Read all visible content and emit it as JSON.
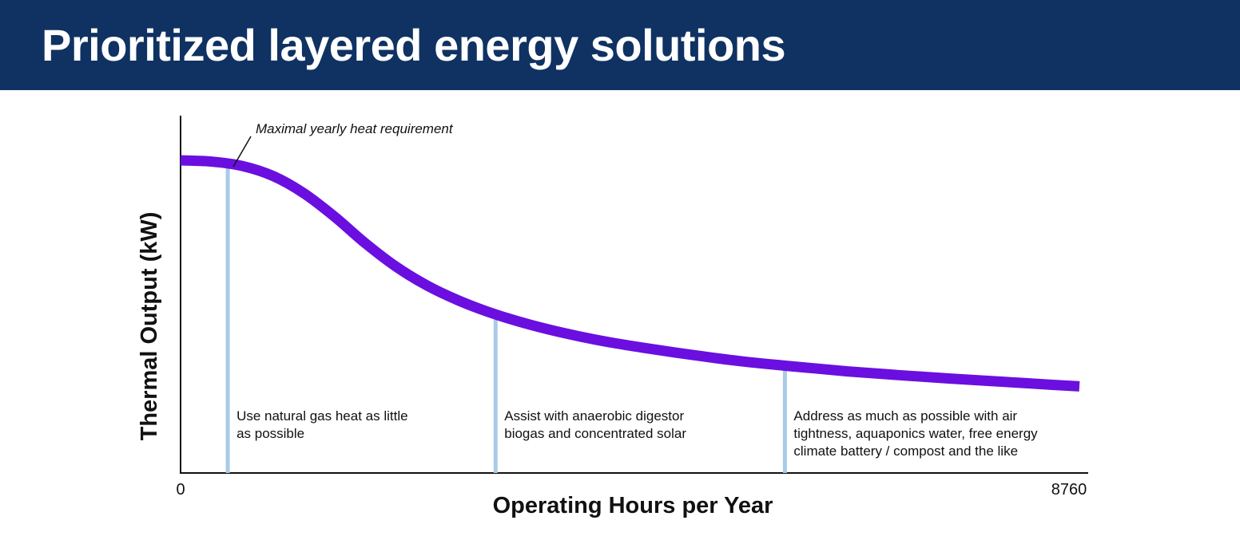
{
  "header": {
    "title": "Prioritized layered energy solutions"
  },
  "chart_data": {
    "type": "line",
    "title": "Prioritized layered energy solutions",
    "xlabel": "Operating Hours per Year",
    "ylabel": "Thermal Output (kW)",
    "xlim": [
      0,
      8760
    ],
    "x_ticks": [
      "0",
      "8760"
    ],
    "y_ticks": [],
    "grid": false,
    "legend": "none",
    "series": [
      {
        "color": "#6a0fe0",
        "x": [
          0,
          300,
          600,
          900,
          1200,
          1500,
          1800,
          2100,
          2400,
          2700,
          3000,
          3300,
          3600,
          3900,
          4200,
          4500,
          5000,
          5500,
          6000,
          6500,
          7000,
          7500,
          8000,
          8500,
          8760
        ],
        "y": [
          100,
          99.6,
          98.2,
          95,
          89.5,
          82,
          73.5,
          66,
          60,
          55.3,
          51.5,
          48.4,
          45.8,
          43.6,
          41.7,
          40.1,
          37.7,
          35.6,
          34,
          32.5,
          31.3,
          30.2,
          29.2,
          28.2,
          27.7
        ]
      }
    ],
    "markers": [
      {
        "x": 460,
        "color": "#a9cbe6",
        "label": "Use natural gas heat as little as possible"
      },
      {
        "x": 3070,
        "color": "#a9cbe6",
        "label": "Assist with anaerobic digestor biogas and concentrated solar"
      },
      {
        "x": 5890,
        "color": "#a9cbe6",
        "label": "Address as much as possible with air tightness, aquaponics water, free energy climate battery / compost and the like"
      }
    ],
    "annotations": [
      {
        "text": "Maximal yearly heat requirement",
        "points_to": "peak of curve"
      }
    ],
    "marker_texts": [
      [
        "Use natural gas heat as little",
        "as possible"
      ],
      [
        "Assist with anaerobic digestor",
        "biogas and concentrated solar"
      ],
      [
        "Address as much as possible with air",
        "tightness, aquaponics water, free energy",
        "climate battery / compost and the like"
      ]
    ]
  }
}
